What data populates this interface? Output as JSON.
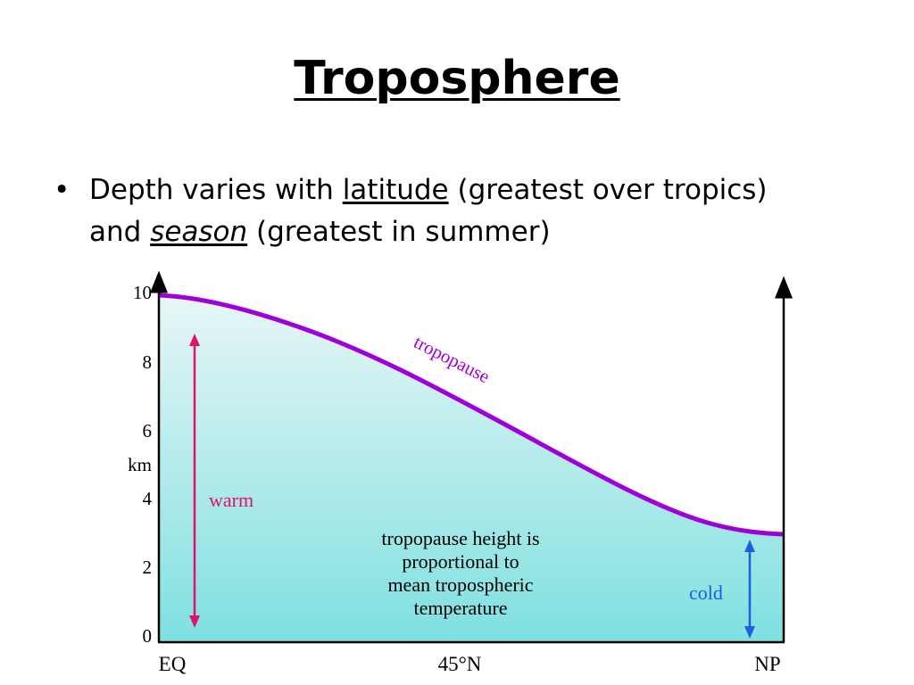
{
  "slide": {
    "title": "Troposphere",
    "bullet": {
      "marker": "•",
      "part1": "Depth varies with ",
      "underlined_word": "latitude",
      "part2": " (greatest over tropics)",
      "part3": "and ",
      "underlined_italic_word": "season",
      "part4": " (greatest in summer)"
    }
  },
  "diagram": {
    "y_ticks": [
      "10",
      "8",
      "6",
      "4",
      "2",
      "0"
    ],
    "y_unit_label": "km",
    "x_labels": [
      "EQ",
      "45°N",
      "NP"
    ],
    "curve_label": "tropopause",
    "warm_label": "warm",
    "cold_label": "cold",
    "center_note": [
      "tropopause height is",
      "proportional to",
      "mean tropospheric",
      "temperature"
    ],
    "colors": {
      "fill_top": "#e8f6f6",
      "fill_bottom": "#7fe0e0",
      "curve": "#a000d8",
      "warm": "#e0126e",
      "cold": "#1a5fe0",
      "axis": "#000000"
    }
  }
}
